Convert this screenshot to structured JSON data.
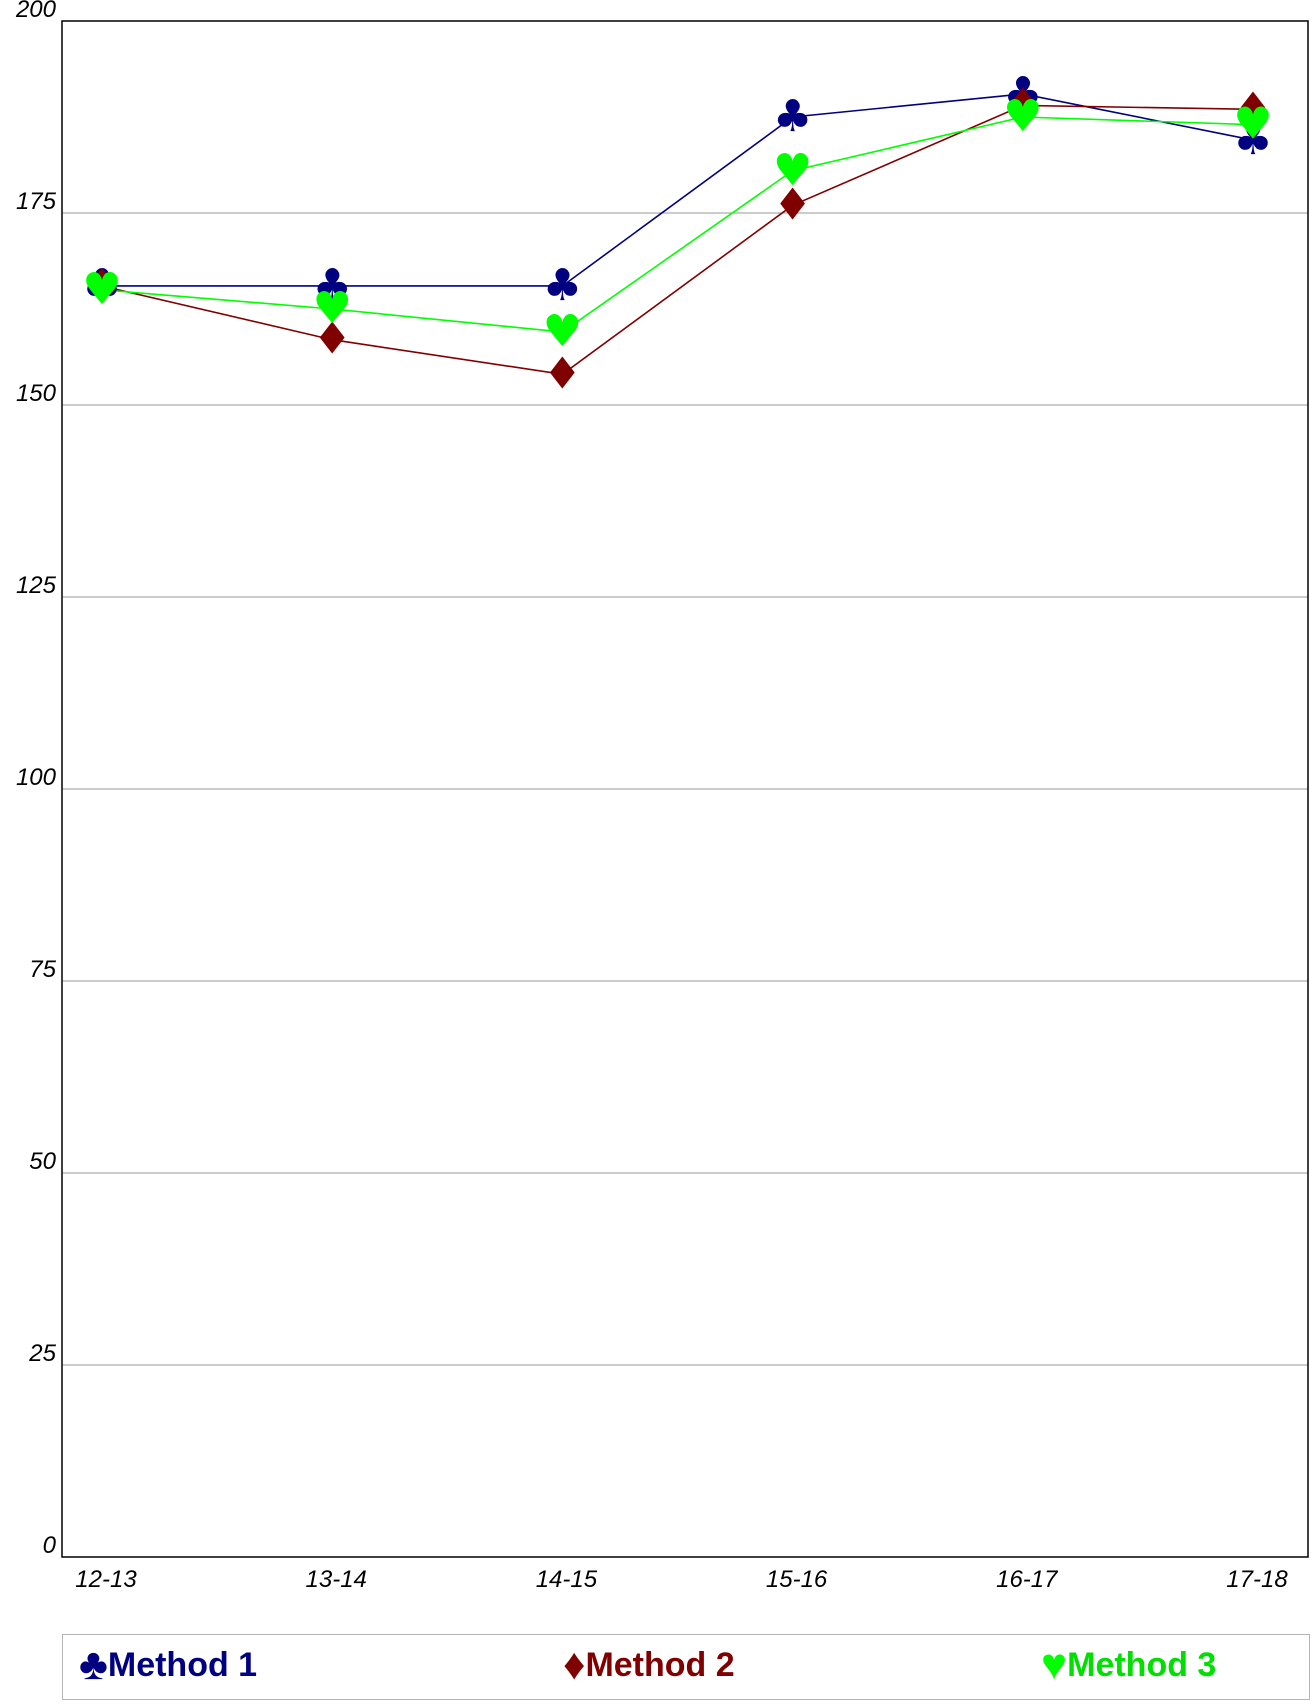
{
  "chart_data": {
    "type": "line",
    "title": "",
    "xlabel": "",
    "ylabel": "",
    "categories": [
      "12-13",
      "13-14",
      "14-15",
      "15-16",
      "16-17",
      "17-18"
    ],
    "ylim": [
      0,
      200
    ],
    "yticks": [
      0,
      25,
      50,
      75,
      100,
      125,
      150,
      175,
      200
    ],
    "grid": true,
    "legend_position": "bottom",
    "series": [
      {
        "name": "Method 1",
        "values": [
          165.5,
          165.5,
          165.5,
          187.5,
          190.5,
          184.5
        ],
        "color": "#000080",
        "marker": "club-icon",
        "glyph": "♣"
      },
      {
        "name": "Method 2",
        "values": [
          165.5,
          158.5,
          154,
          176,
          189,
          188.5
        ],
        "color": "#800000",
        "marker": "diamond-icon",
        "glyph": "♦"
      },
      {
        "name": "Method 3",
        "values": [
          165,
          162.5,
          159.5,
          180.5,
          187.5,
          186.5
        ],
        "color": "#00ff00",
        "marker": "heart-icon",
        "glyph": "♥"
      }
    ]
  }
}
